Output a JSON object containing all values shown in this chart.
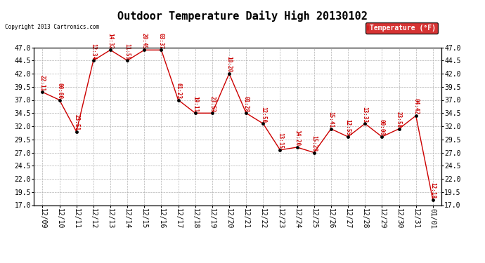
{
  "title": "Outdoor Temperature Daily High 20130102",
  "copyright": "Copyright 2013 Cartronics.com",
  "legend_label": "Temperature (°F)",
  "x_labels": [
    "12/09",
    "12/10",
    "12/11",
    "12/12",
    "12/13",
    "12/14",
    "12/15",
    "12/16",
    "12/17",
    "12/18",
    "12/19",
    "12/20",
    "12/21",
    "12/22",
    "12/23",
    "12/24",
    "12/25",
    "12/26",
    "12/27",
    "12/28",
    "12/29",
    "12/30",
    "12/31",
    "01/01"
  ],
  "y_values": [
    38.5,
    37.0,
    31.0,
    44.5,
    46.5,
    44.5,
    46.5,
    46.5,
    37.0,
    34.5,
    34.5,
    42.0,
    34.5,
    32.5,
    27.5,
    28.0,
    27.0,
    31.5,
    30.0,
    32.5,
    30.0,
    31.5,
    34.0,
    18.0
  ],
  "time_labels": [
    "22:11",
    "00:00",
    "23:51",
    "12:34",
    "14:32",
    "11:55",
    "20:45",
    "03:37",
    "01:23",
    "19:11",
    "23:53",
    "10:20",
    "01:28",
    "12:50",
    "13:15",
    "14:20",
    "15:28",
    "15:41",
    "12:55",
    "13:33",
    "00:00",
    "23:58",
    "04:42",
    "12:18"
  ],
  "ylim_min": 17.0,
  "ylim_max": 47.0,
  "yticks": [
    17.0,
    19.5,
    22.0,
    24.5,
    27.0,
    29.5,
    32.0,
    34.5,
    37.0,
    39.5,
    42.0,
    44.5,
    47.0
  ],
  "line_color": "#cc0000",
  "marker_color": "#000000",
  "bg_color": "#ffffff",
  "grid_color": "#aaaaaa",
  "legend_bg": "#cc0000",
  "legend_text_color": "#ffffff",
  "title_fontsize": 11,
  "tick_fontsize": 7,
  "annot_fontsize": 5.5,
  "copyright_fontsize": 5.5
}
